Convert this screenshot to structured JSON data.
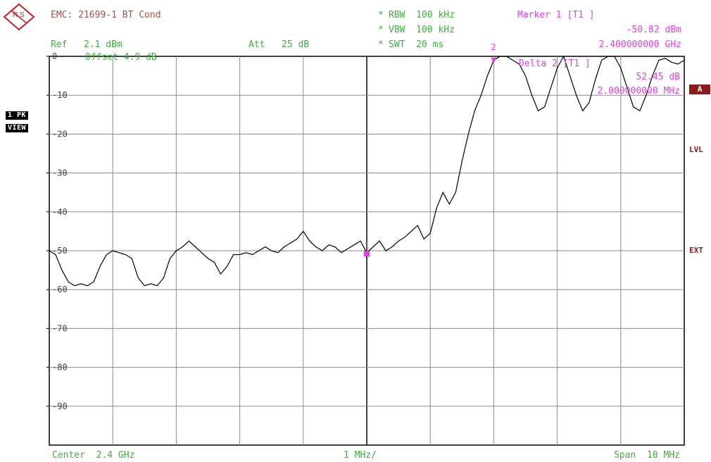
{
  "header": {
    "logo_letters": "R S",
    "title": "EMC: 21699-1 BT Cond",
    "ref_label": "Ref   2.1 dBm",
    "att_label": "Att   25 dB",
    "offset_label": "Offset  4.9 dB",
    "rbw": "RBW  100 kHz",
    "vbw": "VBW  100 kHz",
    "swt": "SWT  20 ms",
    "star": "*"
  },
  "marker": {
    "title": "Marker 1 [T1 ]",
    "value": "-50.82 dBm",
    "freq": "2.400000000 GHz"
  },
  "delta": {
    "title": "Delta 2 [T1 ]",
    "value": "52.45 dB",
    "freq": "2.000000000 MHz"
  },
  "side": {
    "trace_mode": "1 PK",
    "view": "VIEW",
    "a_badge": "A",
    "lvl": "LVL",
    "ext": "EXT"
  },
  "footer": {
    "center": "Center  2.4 GHz",
    "div": "1 MHz/",
    "span": "Span  10 MHz"
  },
  "colors": {
    "grid": "#8a8a8a",
    "trace": "#000000",
    "marker": "#e040e0",
    "brown": "#a0524d",
    "green": "#3fae3f"
  },
  "chart_data": {
    "type": "line",
    "xlabel": "",
    "ylabel": "",
    "x_unit": "MHz",
    "xlim": [
      2395,
      2405
    ],
    "ylim": [
      -100,
      0
    ],
    "yticks": [
      0,
      -10,
      -20,
      -30,
      -40,
      -50,
      -60,
      -70,
      -80,
      -90
    ],
    "ytick_labels": [
      "0",
      "-10",
      "-20",
      "-30",
      "-40",
      "-50",
      "-60",
      "-70",
      "-80",
      "-90"
    ],
    "grid": true,
    "center_line_x": 2400,
    "series": [
      {
        "name": "",
        "x": [
          2395.0,
          2395.1,
          2395.2,
          2395.3,
          2395.4,
          2395.5,
          2395.6,
          2395.7,
          2395.8,
          2395.9,
          2396.0,
          2396.1,
          2396.2,
          2396.3,
          2396.4,
          2396.5,
          2396.6,
          2396.7,
          2396.8,
          2396.9,
          2397.0,
          2397.1,
          2397.2,
          2397.3,
          2397.4,
          2397.5,
          2397.6,
          2397.7,
          2397.8,
          2397.9,
          2398.0,
          2398.1,
          2398.2,
          2398.3,
          2398.4,
          2398.5,
          2398.6,
          2398.7,
          2398.8,
          2398.9,
          2399.0,
          2399.1,
          2399.2,
          2399.3,
          2399.4,
          2399.5,
          2399.6,
          2399.7,
          2399.8,
          2399.9,
          2400.0,
          2400.1,
          2400.2,
          2400.3,
          2400.4,
          2400.5,
          2400.6,
          2400.7,
          2400.8,
          2400.9,
          2401.0,
          2401.1,
          2401.2,
          2401.3,
          2401.4,
          2401.5,
          2401.6,
          2401.7,
          2401.8,
          2401.9,
          2402.0,
          2402.1,
          2402.2,
          2402.3,
          2402.4,
          2402.5,
          2402.6,
          2402.7,
          2402.8,
          2402.9,
          2403.0,
          2403.1,
          2403.2,
          2403.3,
          2403.4,
          2403.5,
          2403.6,
          2403.7,
          2403.8,
          2403.9,
          2404.0,
          2404.1,
          2404.2,
          2404.3,
          2404.4,
          2404.5,
          2404.6,
          2404.7,
          2404.8,
          2404.9,
          2405.0
        ],
        "y": [
          -50,
          -51,
          -55,
          -58,
          -59,
          -58.5,
          -59,
          -58,
          -54,
          -51,
          -50,
          -50.5,
          -51,
          -52,
          -57,
          -59,
          -58.5,
          -59,
          -57,
          -52,
          -50,
          -49,
          -47.5,
          -49,
          -50.5,
          -52,
          -53,
          -56,
          -54,
          -51,
          -51,
          -50.5,
          -51,
          -50,
          -49,
          -50,
          -50.5,
          -49,
          -48,
          -47,
          -45,
          -47.5,
          -49,
          -50,
          -48.5,
          -49,
          -50.5,
          -49.5,
          -48.5,
          -47.5,
          -50.5,
          -49,
          -47.5,
          -50,
          -49,
          -47.5,
          -46.5,
          -45,
          -43.5,
          -47,
          -45.5,
          -39,
          -35,
          -38,
          -35,
          -27,
          -20,
          -14,
          -10,
          -5,
          -1,
          0,
          0,
          -1,
          -2,
          -5,
          -10,
          -14,
          -13,
          -8,
          -3,
          0,
          -5,
          -10,
          -14,
          -12,
          -6,
          -1,
          0,
          0,
          -3,
          -8,
          -13,
          -14,
          -10,
          -5,
          -1,
          -0.5,
          -1.5,
          -2,
          -1
        ]
      }
    ],
    "markers": [
      {
        "label": "1",
        "x": 2400.0,
        "y": -50.82
      },
      {
        "label": "2",
        "x": 2402.0,
        "y": 1.6
      }
    ]
  }
}
